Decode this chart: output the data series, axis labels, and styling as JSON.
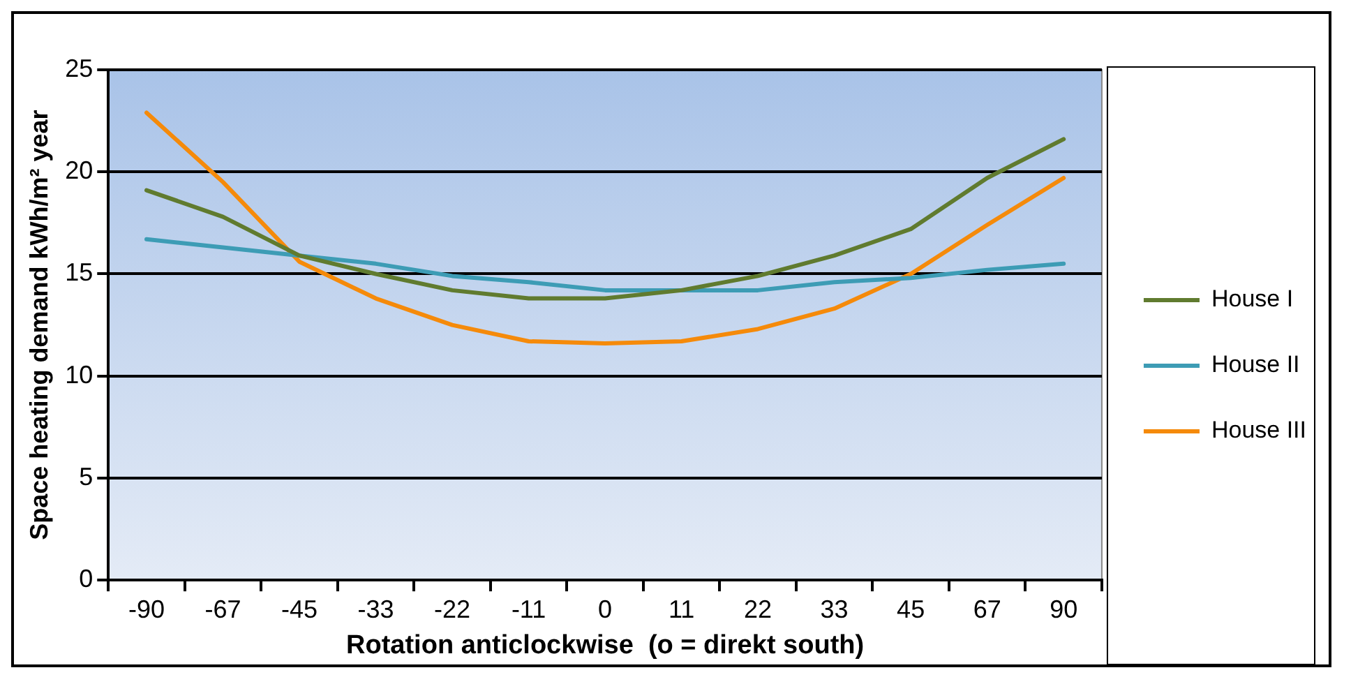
{
  "chart_data": {
    "type": "line",
    "xlabel": "Rotation anticlockwise  (o = direkt south)",
    "ylabel": "Space heating demand kWh/m² year",
    "categories": [
      "-90",
      "-67",
      "-45",
      "-33",
      "-22",
      "-11",
      "0",
      "11",
      "22",
      "33",
      "45",
      "67",
      "90"
    ],
    "series": [
      {
        "name": "House I",
        "color": "#607b2f",
        "values": [
          19.1,
          17.8,
          15.9,
          15.0,
          14.2,
          13.8,
          13.8,
          14.2,
          14.9,
          15.9,
          17.2,
          19.7,
          21.6
        ]
      },
      {
        "name": "House II",
        "color": "#3d9cb5",
        "values": [
          16.7,
          16.3,
          15.9,
          15.5,
          14.9,
          14.6,
          14.2,
          14.2,
          14.2,
          14.6,
          14.8,
          15.2,
          15.5
        ]
      },
      {
        "name": "House III",
        "color": "#f58a0a",
        "values": [
          22.9,
          19.5,
          15.6,
          13.8,
          12.5,
          11.7,
          11.6,
          11.7,
          12.3,
          13.3,
          15.0,
          17.4,
          19.7
        ]
      }
    ],
    "ylim": [
      0,
      25
    ],
    "yticks": [
      0,
      5,
      10,
      15,
      20,
      25
    ],
    "grid": "y",
    "legend": "right",
    "marker": "none",
    "line_style": "solid"
  }
}
